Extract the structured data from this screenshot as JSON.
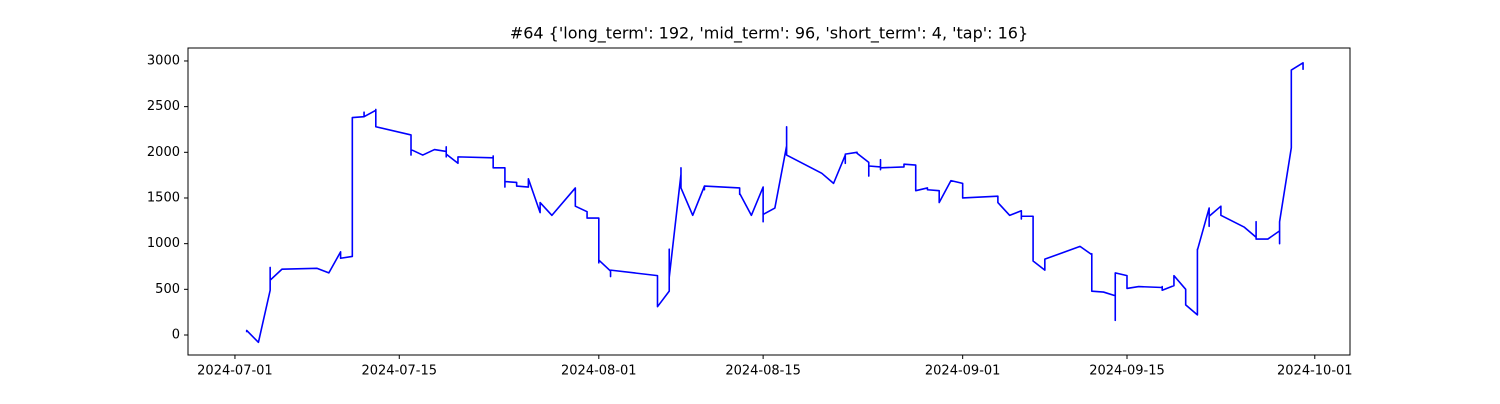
{
  "chart_data": {
    "type": "line",
    "title": "#64 {'long_term': 192, 'mid_term': 96, 'short_term': 4, 'tap': 16}",
    "x": [
      "2024-07-02",
      "2024-07-02",
      "2024-07-03",
      "2024-07-04",
      "2024-07-04",
      "2024-07-04",
      "2024-07-04",
      "2024-07-05",
      "2024-07-08",
      "2024-07-09",
      "2024-07-10",
      "2024-07-10",
      "2024-07-11",
      "2024-07-11",
      "2024-07-11",
      "2024-07-12",
      "2024-07-12",
      "2024-07-12",
      "2024-07-13",
      "2024-07-13",
      "2024-07-13",
      "2024-07-16",
      "2024-07-16",
      "2024-07-16",
      "2024-07-17",
      "2024-07-18",
      "2024-07-19",
      "2024-07-19",
      "2024-07-19",
      "2024-07-19",
      "2024-07-20",
      "2024-07-20",
      "2024-07-23",
      "2024-07-23",
      "2024-07-23",
      "2024-07-24",
      "2024-07-24",
      "2024-07-24",
      "2024-07-24",
      "2024-07-25",
      "2024-07-25",
      "2024-07-26",
      "2024-07-26",
      "2024-07-26",
      "2024-07-27",
      "2024-07-27",
      "2024-07-28",
      "2024-07-30",
      "2024-07-30",
      "2024-07-31",
      "2024-07-31",
      "2024-08-01",
      "2024-08-01",
      "2024-08-01",
      "2024-08-02",
      "2024-08-02",
      "2024-08-02",
      "2024-08-06",
      "2024-08-06",
      "2024-08-06",
      "2024-08-07",
      "2024-08-07",
      "2024-08-07",
      "2024-08-07",
      "2024-08-08",
      "2024-08-08",
      "2024-08-08",
      "2024-08-09",
      "2024-08-10",
      "2024-08-10",
      "2024-08-10",
      "2024-08-13",
      "2024-08-13",
      "2024-08-13",
      "2024-08-14",
      "2024-08-15",
      "2024-08-15",
      "2024-08-15",
      "2024-08-15",
      "2024-08-15",
      "2024-08-16",
      "2024-08-17",
      "2024-08-17",
      "2024-08-17",
      "2024-08-17",
      "2024-08-17",
      "2024-08-20",
      "2024-08-21",
      "2024-08-22",
      "2024-08-22",
      "2024-08-22",
      "2024-08-23",
      "2024-08-23",
      "2024-08-24",
      "2024-08-24",
      "2024-08-24",
      "2024-08-25",
      "2024-08-25",
      "2024-08-25",
      "2024-08-25",
      "2024-08-25",
      "2024-08-27",
      "2024-08-27",
      "2024-08-28",
      "2024-08-28",
      "2024-08-28",
      "2024-08-28",
      "2024-08-28",
      "2024-08-29",
      "2024-08-29",
      "2024-08-30",
      "2024-08-30",
      "2024-08-30",
      "2024-08-31",
      "2024-09-01",
      "2024-09-01",
      "2024-09-01",
      "2024-09-01",
      "2024-09-04",
      "2024-09-04",
      "2024-09-05",
      "2024-09-06",
      "2024-09-06",
      "2024-09-06",
      "2024-09-07",
      "2024-09-07",
      "2024-09-08",
      "2024-09-08",
      "2024-09-08",
      "2024-09-11",
      "2024-09-12",
      "2024-09-12",
      "2024-09-12",
      "2024-09-12",
      "2024-09-12",
      "2024-09-13",
      "2024-09-14",
      "2024-09-14",
      "2024-09-14",
      "2024-09-15",
      "2024-09-15",
      "2024-09-15",
      "2024-09-15",
      "2024-09-15",
      "2024-09-16",
      "2024-09-18",
      "2024-09-18",
      "2024-09-18",
      "2024-09-19",
      "2024-09-19",
      "2024-09-19",
      "2024-09-20",
      "2024-09-20",
      "2024-09-20",
      "2024-09-21",
      "2024-09-21",
      "2024-09-21",
      "2024-09-21",
      "2024-09-22",
      "2024-09-22",
      "2024-09-22",
      "2024-09-22",
      "2024-09-23",
      "2024-09-23",
      "2024-09-25",
      "2024-09-26",
      "2024-09-26",
      "2024-09-26",
      "2024-09-27",
      "2024-09-28",
      "2024-09-28",
      "2024-09-28",
      "2024-09-28",
      "2024-09-29",
      "2024-09-29",
      "2024-09-30",
      "2024-09-30",
      "2024-09-30"
    ],
    "series": [
      {
        "color": "#0000ff",
        "values": [
          30,
          50,
          -80,
          490,
          740,
          740,
          600,
          720,
          730,
          680,
          910,
          840,
          860,
          1640,
          2380,
          2390,
          2440,
          2390,
          2460,
          2470,
          2280,
          2190,
          1970,
          2030,
          1970,
          2030,
          2010,
          2060,
          1950,
          1980,
          1880,
          1950,
          1940,
          1960,
          1830,
          1830,
          1620,
          1630,
          1680,
          1670,
          1630,
          1620,
          1680,
          1710,
          1340,
          1450,
          1310,
          1610,
          1410,
          1350,
          1280,
          1280,
          790,
          820,
          700,
          640,
          710,
          650,
          510,
          310,
          480,
          940,
          610,
          630,
          1760,
          1830,
          1610,
          1310,
          1630,
          1590,
          1630,
          1610,
          1540,
          1550,
          1310,
          1620,
          1310,
          1300,
          1240,
          1320,
          1390,
          2070,
          2280,
          2070,
          2050,
          1970,
          1770,
          1660,
          1970,
          1880,
          1980,
          2000,
          1990,
          1890,
          1740,
          1850,
          1840,
          1890,
          1920,
          1810,
          1830,
          1840,
          1870,
          1860,
          1740,
          1640,
          1640,
          1580,
          1610,
          1590,
          1580,
          1510,
          1450,
          1690,
          1660,
          1610,
          1500,
          1500,
          1520,
          1450,
          1310,
          1360,
          1270,
          1300,
          1300,
          810,
          710,
          710,
          830,
          970,
          880,
          890,
          820,
          610,
          480,
          470,
          430,
          160,
          680,
          650,
          570,
          540,
          550,
          510,
          530,
          520,
          530,
          490,
          540,
          580,
          650,
          500,
          360,
          330,
          220,
          840,
          940,
          930,
          1390,
          1310,
          1190,
          1300,
          1410,
          1310,
          1180,
          1070,
          1240,
          1050,
          1050,
          1140,
          1000,
          1110,
          1240,
          2050,
          2900,
          2980,
          2910,
          2980
        ]
      }
    ],
    "xlim": [
      "2024-06-27",
      "2024-10-04"
    ],
    "ylim": [
      -219,
      3142
    ],
    "xticks": [
      "2024-07-01",
      "2024-07-15",
      "2024-08-01",
      "2024-08-15",
      "2024-09-01",
      "2024-09-15",
      "2024-10-01"
    ],
    "yticks": [
      0,
      500,
      1000,
      1500,
      2000,
      2500,
      3000
    ]
  }
}
